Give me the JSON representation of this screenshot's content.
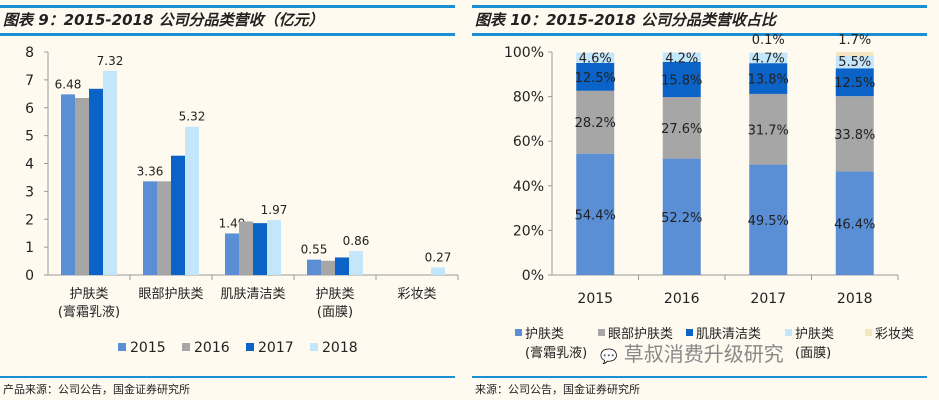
{
  "left": {
    "title": "图表 9：2015-2018 公司分品类营收（亿元）",
    "source": "产品来源：公司公告，国金证券研究所"
  },
  "right": {
    "title": "图表 10：2015-2018 公司分品类营收占比",
    "source": "来源：公司公告，国金证券研究所"
  },
  "watermark": "草叔消费升级研究",
  "chart_data": [
    {
      "type": "bar",
      "title": "图表 9：2015-2018 公司分品类营收（亿元）",
      "ylim": [
        0,
        8
      ],
      "yticks": [
        0,
        1,
        2,
        3,
        4,
        5,
        6,
        7,
        8
      ],
      "categories": [
        [
          "护肤类",
          "(膏霜乳液)"
        ],
        [
          "眼部护肤类"
        ],
        [
          "肌肤清洁类"
        ],
        [
          "护肤类",
          "(面膜)"
        ],
        [
          "彩妆类"
        ]
      ],
      "series": [
        {
          "name": "2015",
          "color": "#5a8fd6",
          "values": [
            6.48,
            3.36,
            1.49,
            0.55,
            0
          ],
          "labels": [
            "6.48",
            "3.36",
            "1.49",
            "0.55",
            ""
          ]
        },
        {
          "name": "2016",
          "color": "#a6a6a6",
          "values": [
            6.35,
            3.36,
            1.92,
            0.51,
            0
          ],
          "labels": [
            "",
            "",
            "",
            "",
            ""
          ]
        },
        {
          "name": "2017",
          "color": "#0b63c7",
          "values": [
            6.68,
            4.28,
            1.86,
            0.63,
            0
          ],
          "labels": [
            "",
            "",
            "",
            "",
            ""
          ]
        },
        {
          "name": "2018",
          "color": "#c4e6fa",
          "values": [
            7.32,
            5.32,
            1.97,
            0.86,
            0.27
          ],
          "labels": [
            "7.32",
            "5.32",
            "1.97",
            "0.86",
            "0.27"
          ]
        }
      ],
      "legend": "bottom",
      "grid": false
    },
    {
      "type": "stacked-bar",
      "title": "图表 10：2015-2018 公司分品类营收占比",
      "ylim": [
        0,
        100
      ],
      "yticks": [
        "0%",
        "20%",
        "40%",
        "60%",
        "80%",
        "100%"
      ],
      "categories": [
        "2015",
        "2016",
        "2017",
        "2018"
      ],
      "series": [
        {
          "name": "护肤类(膏霜乳液)",
          "color": "#5a8fd6",
          "values": [
            54.4,
            52.2,
            49.5,
            46.4
          ]
        },
        {
          "name": "眼部护肤类",
          "color": "#a6a6a6",
          "values": [
            28.2,
            27.6,
            31.7,
            33.8
          ]
        },
        {
          "name": "肌肤清洁类",
          "color": "#0b63c7",
          "values": [
            12.5,
            15.8,
            13.8,
            12.5
          ]
        },
        {
          "name": "护肤类(面膜)",
          "color": "#c4e6fa",
          "values": [
            4.6,
            4.2,
            4.7,
            5.5
          ]
        },
        {
          "name": "彩妆类",
          "color": "#f5e6c0",
          "values": [
            0,
            0,
            0.1,
            1.7
          ]
        }
      ],
      "legend": "bottom",
      "grid": false
    }
  ]
}
